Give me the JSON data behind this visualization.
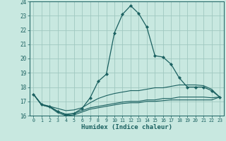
{
  "xlabel": "Humidex (Indice chaleur)",
  "xlim": [
    -0.5,
    23.5
  ],
  "ylim": [
    16,
    24
  ],
  "yticks": [
    16,
    17,
    18,
    19,
    20,
    21,
    22,
    23,
    24
  ],
  "xticks": [
    0,
    1,
    2,
    3,
    4,
    5,
    6,
    7,
    8,
    9,
    10,
    11,
    12,
    13,
    14,
    15,
    16,
    17,
    18,
    19,
    20,
    21,
    22,
    23
  ],
  "bg_color": "#c8e8e0",
  "grid_color": "#a0c8c0",
  "line_color": "#1a6060",
  "curves": [
    {
      "x": [
        0,
        1,
        2,
        3,
        4,
        5,
        6,
        7,
        8,
        9,
        10,
        11,
        12,
        13,
        14,
        15,
        16,
        17,
        18,
        19,
        20,
        21,
        22,
        23
      ],
      "y": [
        17.5,
        16.8,
        16.65,
        16.3,
        16.05,
        16.15,
        16.5,
        17.25,
        18.4,
        18.9,
        21.8,
        23.1,
        23.7,
        23.15,
        22.2,
        20.2,
        20.1,
        19.6,
        18.65,
        18.0,
        18.0,
        18.0,
        17.75,
        17.3
      ],
      "marker": true,
      "marker_x": [
        0,
        1,
        2,
        3,
        4,
        5,
        6,
        7,
        8,
        9,
        10,
        11,
        12,
        13,
        14,
        15,
        16,
        17,
        18,
        19,
        20,
        21,
        22,
        23
      ],
      "marker_y": [
        17.5,
        16.8,
        16.65,
        16.3,
        16.05,
        16.15,
        16.5,
        17.25,
        18.4,
        18.9,
        21.8,
        23.1,
        23.7,
        23.15,
        22.2,
        20.2,
        20.1,
        19.6,
        18.65,
        18.0,
        18.0,
        18.0,
        17.75,
        17.3
      ]
    },
    {
      "x": [
        0,
        1,
        2,
        3,
        4,
        5,
        6,
        7,
        8,
        9,
        10,
        11,
        12,
        13,
        14,
        15,
        16,
        17,
        18,
        19,
        20,
        21,
        22,
        23
      ],
      "y": [
        17.5,
        16.75,
        16.65,
        16.5,
        16.35,
        16.4,
        16.55,
        16.9,
        17.2,
        17.4,
        17.55,
        17.65,
        17.75,
        17.75,
        17.85,
        17.95,
        17.95,
        18.05,
        18.15,
        18.15,
        18.15,
        18.1,
        17.85,
        17.3
      ],
      "marker": false
    },
    {
      "x": [
        0,
        1,
        2,
        3,
        4,
        5,
        6,
        7,
        8,
        9,
        10,
        11,
        12,
        13,
        14,
        15,
        16,
        17,
        18,
        19,
        20,
        21,
        22,
        23
      ],
      "y": [
        17.5,
        16.75,
        16.6,
        16.3,
        16.1,
        16.15,
        16.35,
        16.55,
        16.65,
        16.75,
        16.85,
        16.95,
        17.0,
        17.0,
        17.1,
        17.1,
        17.2,
        17.2,
        17.3,
        17.3,
        17.3,
        17.3,
        17.25,
        17.3
      ],
      "marker": false
    },
    {
      "x": [
        0,
        1,
        2,
        3,
        4,
        5,
        6,
        7,
        8,
        9,
        10,
        11,
        12,
        13,
        14,
        15,
        16,
        17,
        18,
        19,
        20,
        21,
        22,
        23
      ],
      "y": [
        17.5,
        16.75,
        16.6,
        16.2,
        16.0,
        16.05,
        16.25,
        16.45,
        16.55,
        16.65,
        16.75,
        16.85,
        16.9,
        16.9,
        17.0,
        17.0,
        17.05,
        17.1,
        17.1,
        17.1,
        17.1,
        17.1,
        17.1,
        17.3
      ],
      "marker": false
    }
  ]
}
